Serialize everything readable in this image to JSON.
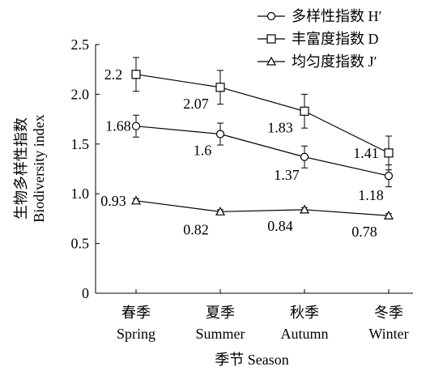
{
  "chart_data": {
    "type": "line",
    "categories": [
      "春季",
      "夏季",
      "秋季",
      "冬季"
    ],
    "category_sublabels": [
      "Spring",
      "Summer",
      "Autumn",
      "Winter"
    ],
    "xlabel": "季节 Season",
    "ylabel_cn": "生物多样性指数",
    "ylabel_en": "Biodiversity index",
    "ylim": [
      0,
      2.5
    ],
    "yticks": [
      "0",
      "0.5",
      "1.0",
      "1.5",
      "2.0",
      "2.5"
    ],
    "grid": false,
    "legend_position": "top-right",
    "series": [
      {
        "name": "多样性指数 H′",
        "marker": "circle",
        "values": [
          1.68,
          1.6,
          1.37,
          1.18
        ],
        "labels": [
          "1.68",
          "1.6",
          "1.37",
          "1.18"
        ],
        "errors": [
          0.11,
          0.11,
          0.11,
          0.11
        ]
      },
      {
        "name": "丰富度指数 D",
        "marker": "square",
        "values": [
          2.2,
          2.07,
          1.83,
          1.41
        ],
        "labels": [
          "2.2",
          "2.07",
          "1.83",
          "1.41"
        ],
        "errors": [
          0.17,
          0.17,
          0.17,
          0.17
        ]
      },
      {
        "name": "均匀度指数 J′",
        "marker": "triangle",
        "values": [
          0.93,
          0.82,
          0.84,
          0.78
        ],
        "labels": [
          "0.93",
          "0.82",
          "0.84",
          "0.78"
        ],
        "errors": [
          0.02,
          0.02,
          0.02,
          0.02
        ]
      }
    ]
  }
}
